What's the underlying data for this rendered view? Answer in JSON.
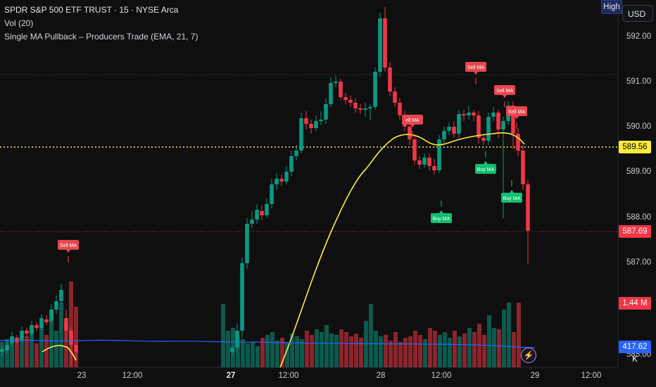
{
  "legend": {
    "symbol_line": "SPDR S&P 500 ETF TRUST · 15 · NYSE Arca",
    "volume_line": "Vol (20)",
    "indicator_line": "Single MA Pullback – Producers Trade (EMA, 21, 7)"
  },
  "badges": {
    "high": "High",
    "currency": "USD"
  },
  "price_axis": [
    "592.00",
    "591.00",
    "590.00",
    "589.00",
    "588.00",
    "587.00",
    "585.00"
  ],
  "price_tags": {
    "ema": {
      "text": "589.56",
      "color": "#ffeb3b",
      "text_color": "#000000"
    },
    "last": {
      "text": "587.69",
      "color": "#f23645",
      "text_color": "#ffffff"
    },
    "volume": {
      "text": "1.44 M",
      "color": "#f23645",
      "text_color": "#ffffff"
    },
    "volume_ma": {
      "text": "417.62 K",
      "color": "#2962ff",
      "text_color": "#ffffff"
    }
  },
  "time_axis": [
    {
      "text": "23",
      "bold": false
    },
    {
      "text": "12:00",
      "bold": false
    },
    {
      "text": "27",
      "bold": true
    },
    {
      "text": "12:00",
      "bold": false
    },
    {
      "text": "28",
      "bold": false
    },
    {
      "text": "12:00",
      "bold": false
    },
    {
      "text": "29",
      "bold": false
    },
    {
      "text": "12:00",
      "bold": false
    }
  ],
  "signals": [
    {
      "type": "sell",
      "text": "Sell MA"
    },
    {
      "type": "sell",
      "text": "ell MA"
    },
    {
      "type": "sell",
      "text": "Sell MA"
    },
    {
      "type": "sell",
      "text": "Sell MA"
    },
    {
      "type": "sell",
      "text": "Sell MA"
    },
    {
      "type": "buy",
      "text": "Buy MA"
    },
    {
      "type": "buy",
      "text": "Buy MA"
    },
    {
      "type": "buy",
      "text": "Buy MA"
    }
  ],
  "colors": {
    "up": "#089981",
    "down": "#f23645",
    "ema": "#ffeb3b",
    "volume_ma": "#2962ff",
    "background": "#0f0f0f",
    "sell_label": "#e8474f",
    "buy_label": "#0fbf70"
  },
  "icons": {
    "alert": "lightning-icon"
  }
}
